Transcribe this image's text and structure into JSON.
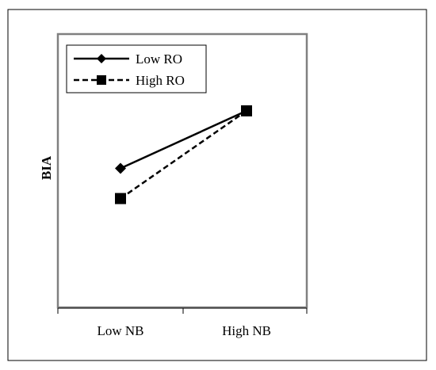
{
  "chart_data": {
    "type": "line",
    "title": "",
    "xlabel": "",
    "ylabel": "BIA",
    "categories": [
      "Low NB",
      "High NB"
    ],
    "ylim": [
      0,
      10
    ],
    "grid": false,
    "legend_position": "top-left",
    "series": [
      {
        "name": "Low RO",
        "values": [
          5.1,
          7.2
        ],
        "line_style": "solid",
        "marker": "diamond",
        "color": "#000000"
      },
      {
        "name": "High RO",
        "values": [
          4.0,
          7.2
        ],
        "line_style": "dashed",
        "marker": "square",
        "color": "#000000"
      }
    ]
  }
}
